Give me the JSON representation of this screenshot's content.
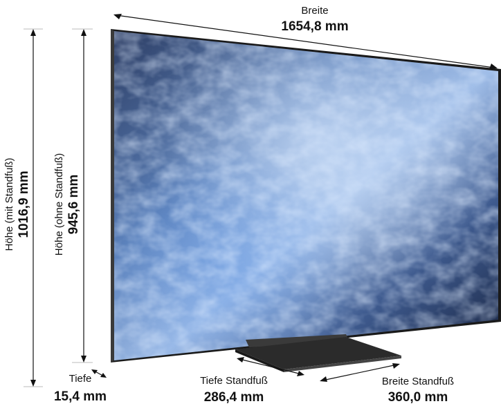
{
  "dimensions": {
    "width": {
      "label": "Breite",
      "value": "1654,8 mm"
    },
    "height_with_stand": {
      "label": "Höhe (mit Standfuß)",
      "value": "1016,9 mm"
    },
    "height_without_stand": {
      "label": "Höhe (ohne Standfuß)",
      "value": "945,6 mm"
    },
    "depth": {
      "label": "Tiefe",
      "value": "15,4 mm"
    },
    "stand_depth": {
      "label": "Tiefe Standfuß",
      "value": "286,4 mm"
    },
    "stand_width": {
      "label": "Breite Standfuß",
      "value": "360,0 mm"
    }
  },
  "colors": {
    "screen_dark": "#1d2a44",
    "screen_mid": "#4a6fa8",
    "screen_light": "#a9c6ee",
    "bezel": "#1a1a1a",
    "stand": "#2b2b2b"
  }
}
